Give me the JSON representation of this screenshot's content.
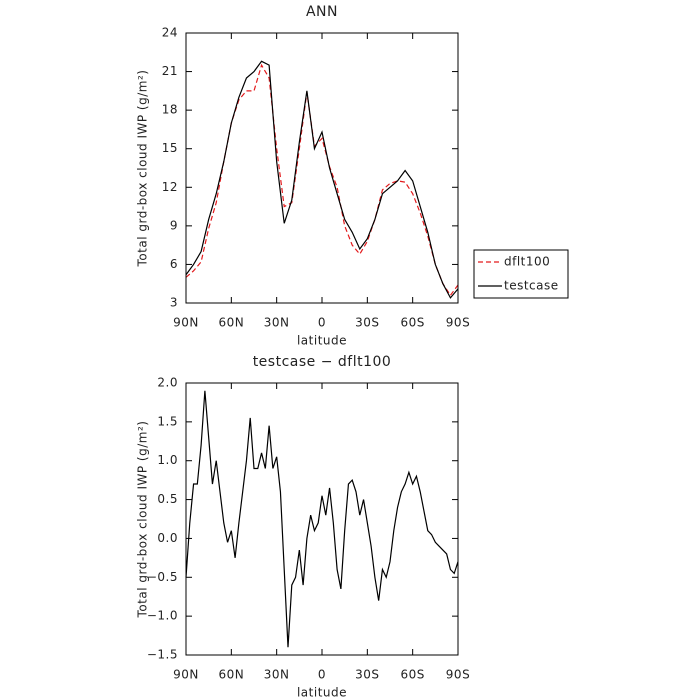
{
  "chart_data": [
    {
      "type": "line",
      "title": "ANN",
      "x_label": "latitude",
      "y_label": "Total grd-box cloud IWP (g/m²)",
      "x": [
        90,
        85,
        80,
        75,
        70,
        65,
        60,
        55,
        50,
        45,
        40,
        35,
        30,
        25,
        20,
        15,
        10,
        5,
        0,
        -5,
        -10,
        -15,
        -20,
        -25,
        -30,
        -35,
        -40,
        -45,
        -50,
        -55,
        -60,
        -65,
        -70,
        -75,
        -80,
        -85,
        -90
      ],
      "series": [
        {
          "name": "dflt100",
          "color": "#e31a1c",
          "dashed": true,
          "values": [
            5.0,
            5.5,
            6.2,
            8.8,
            10.8,
            14,
            17,
            18.8,
            19.5,
            19.5,
            21.5,
            20.5,
            15,
            10.5,
            10.8,
            15,
            19.4,
            15.2,
            15.8,
            13.6,
            12,
            9,
            7.5,
            6.8,
            7.8,
            9.5,
            11.8,
            12.3,
            12.5,
            12.4,
            11.5,
            10,
            8.2,
            6,
            4.5,
            3.6,
            4.4
          ]
        },
        {
          "name": "testcase",
          "color": "#000000",
          "dashed": false,
          "values": [
            5.2,
            6.0,
            7.0,
            9.5,
            11.5,
            14,
            17,
            19,
            20.5,
            21,
            21.8,
            21.5,
            14,
            9.2,
            11,
            15.5,
            19.5,
            15,
            16.3,
            13.5,
            11.5,
            9.5,
            8.5,
            7.2,
            8,
            9.5,
            11.5,
            12,
            12.5,
            13.3,
            12.5,
            10.5,
            8.5,
            6,
            4.5,
            3.4,
            4.1
          ]
        }
      ],
      "xlim": [
        90,
        -90
      ],
      "xticks": [
        {
          "value": 90,
          "label": "90N"
        },
        {
          "value": 60,
          "label": "60N"
        },
        {
          "value": 30,
          "label": "30N"
        },
        0,
        {
          "value": -30,
          "label": "30S"
        },
        {
          "value": -60,
          "label": "60S"
        },
        {
          "value": -90,
          "label": "90S"
        }
      ],
      "ylim": [
        3,
        24
      ],
      "yticks": [
        3,
        6,
        9,
        12,
        15,
        18,
        21,
        24
      ],
      "legend": "right"
    },
    {
      "type": "line",
      "title": "testcase − dflt100",
      "x_label": "latitude",
      "y_label": "Total grd-box cloud IWP (g/m²)",
      "x": [
        90,
        87.5,
        85,
        82.5,
        80,
        77.5,
        75,
        72.5,
        70,
        67.5,
        65,
        62.5,
        60,
        57.5,
        55,
        52.5,
        50,
        47.5,
        45,
        42.5,
        40,
        37.5,
        35,
        32.5,
        30,
        27.5,
        25,
        22.5,
        20,
        17.5,
        15,
        12.5,
        10,
        7.5,
        5,
        2.5,
        0,
        -2.5,
        -5,
        -7.5,
        -10,
        -12.5,
        -15,
        -17.5,
        -20,
        -22.5,
        -25,
        -27.5,
        -30,
        -32.5,
        -35,
        -37.5,
        -40,
        -42.5,
        -45,
        -47.5,
        -50,
        -52.5,
        -55,
        -57.5,
        -60,
        -62.5,
        -65,
        -67.5,
        -70,
        -72.5,
        -75,
        -77.5,
        -80,
        -82.5,
        -85,
        -87.5,
        -90
      ],
      "series": [
        {
          "color": "#000000",
          "dashed": false,
          "values": [
            -0.5,
            0.2,
            0.7,
            0.7,
            1.2,
            1.9,
            1.3,
            0.7,
            1.0,
            0.6,
            0.2,
            -0.05,
            0.1,
            -0.25,
            0.2,
            0.6,
            1.0,
            1.55,
            0.9,
            0.9,
            1.1,
            0.9,
            1.45,
            0.9,
            1.05,
            0.6,
            -0.4,
            -1.4,
            -0.6,
            -0.5,
            -0.15,
            -0.6,
            0.0,
            0.3,
            0.1,
            0.2,
            0.55,
            0.3,
            0.65,
            0.2,
            -0.4,
            -0.65,
            0.1,
            0.7,
            0.75,
            0.6,
            0.3,
            0.5,
            0.2,
            -0.1,
            -0.5,
            -0.8,
            -0.4,
            -0.5,
            -0.3,
            0.1,
            0.4,
            0.6,
            0.7,
            0.85,
            0.7,
            0.8,
            0.6,
            0.35,
            0.1,
            0.05,
            -0.05,
            -0.1,
            -0.15,
            -0.2,
            -0.4,
            -0.45,
            -0.3
          ]
        }
      ],
      "xlim": [
        90,
        -90
      ],
      "xticks": [
        {
          "value": 90,
          "label": "90N"
        },
        {
          "value": 60,
          "label": "60N"
        },
        {
          "value": 30,
          "label": "30N"
        },
        0,
        {
          "value": -30,
          "label": "30S"
        },
        {
          "value": -60,
          "label": "60S"
        },
        {
          "value": -90,
          "label": "90S"
        }
      ],
      "ylim": [
        -1.5,
        2.0
      ],
      "yticks": [
        {
          "value": -1.5,
          "label": "−1.5"
        },
        {
          "value": -1,
          "label": "−1.0"
        },
        {
          "value": -0.5,
          "label": "−0.5"
        },
        {
          "value": 0,
          "label": "0.0"
        },
        {
          "value": 0.5,
          "label": "0.5"
        },
        {
          "value": 1,
          "label": "1.0"
        },
        {
          "value": 1.5,
          "label": "1.5"
        },
        {
          "value": 2,
          "label": "2.0"
        }
      ]
    }
  ]
}
